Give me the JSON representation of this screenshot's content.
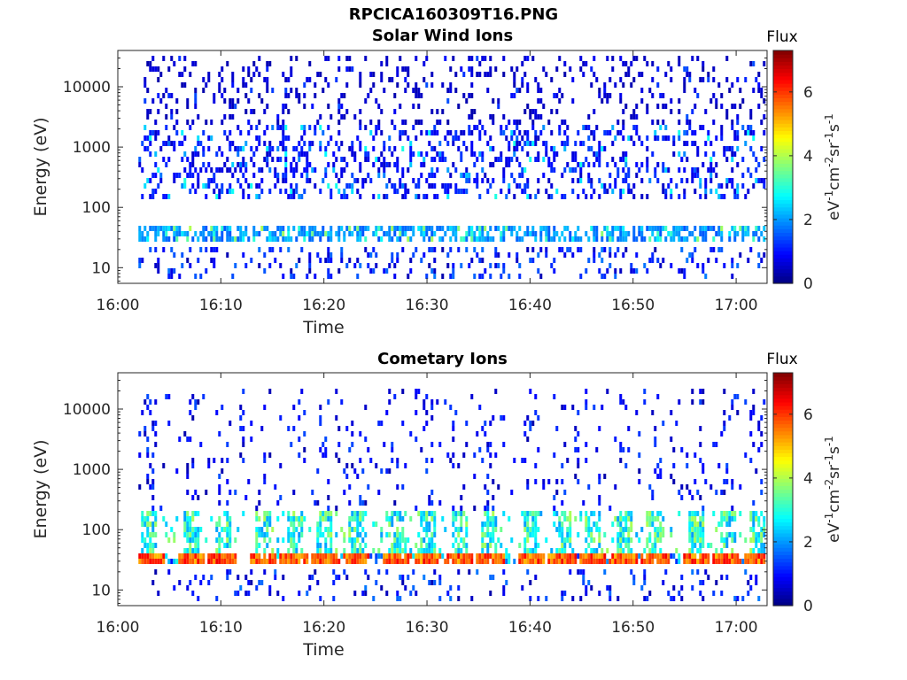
{
  "figure": {
    "title": "RPCICA160309T16.PNG"
  },
  "chart_data": [
    {
      "type": "heatmap",
      "title": "Solar Wind Ions",
      "xlabel": "Time",
      "ylabel": "Energy (eV)",
      "x_ticks": [
        "16:00",
        "16:10",
        "16:20",
        "16:30",
        "16:40",
        "16:50",
        "17:00"
      ],
      "xlim": [
        "16:00",
        "17:03"
      ],
      "y_scale": "log",
      "y_ticks": [
        "10",
        "100",
        "1000",
        "10000"
      ],
      "ylim": [
        5.5,
        40000
      ],
      "colorbar": {
        "label": "eV-1cm-2sr-1s-1",
        "title": "Flux",
        "ticks": [
          "0",
          "2",
          "4",
          "6"
        ],
        "range": [
          0,
          7.3
        ],
        "colormap": "jet"
      },
      "data_start": "16:02",
      "data_end": "17:03",
      "description_note": "sparse low-level flux across 10-20000 eV; persistent band near 30-40 eV",
      "time_sweeps": [],
      "bands": [
        {
          "energy_low": 25,
          "energy_high": 45,
          "level_range": [
            1.5,
            4
          ]
        },
        {
          "energy_low": 150,
          "energy_high": 2500,
          "level_range": [
            0.5,
            3
          ]
        },
        {
          "energy_low": 2500,
          "energy_high": 35000,
          "level_range": [
            0.3,
            1.5
          ]
        }
      ],
      "grid": false
    },
    {
      "type": "heatmap",
      "title": "Cometary Ions",
      "xlabel": "Time",
      "ylabel": "Energy (eV)",
      "x_ticks": [
        "16:00",
        "16:10",
        "16:20",
        "16:30",
        "16:40",
        "16:50",
        "17:00"
      ],
      "xlim": [
        "16:00",
        "17:03"
      ],
      "y_scale": "log",
      "y_ticks": [
        "10",
        "100",
        "1000",
        "10000"
      ],
      "ylim": [
        5.5,
        40000
      ],
      "colorbar": {
        "label": "eV-1cm-2sr-1s-1",
        "title": "Flux",
        "ticks": [
          "0",
          "2",
          "4",
          "6"
        ],
        "range": [
          0,
          7.3
        ],
        "colormap": "jet"
      },
      "data_start": "16:02",
      "data_end": "17:03",
      "time_sweeps": [
        "16:03",
        "16:07",
        "16:10",
        "16:14",
        "16:17",
        "16:20",
        "16:23",
        "16:27",
        "16:30",
        "16:33",
        "16:36",
        "16:40",
        "16:43",
        "16:46",
        "16:49",
        "16:52",
        "16:56",
        "16:59",
        "17:02"
      ],
      "bands": [
        {
          "energy_low": 25,
          "energy_high": 40,
          "level_range": [
            5,
            6.5
          ]
        },
        {
          "energy_low": 40,
          "energy_high": 200,
          "level_range": [
            2,
            4
          ]
        },
        {
          "energy_low": 200,
          "energy_high": 20000,
          "level_range": [
            0.3,
            1.5
          ]
        }
      ],
      "grid": false
    }
  ]
}
